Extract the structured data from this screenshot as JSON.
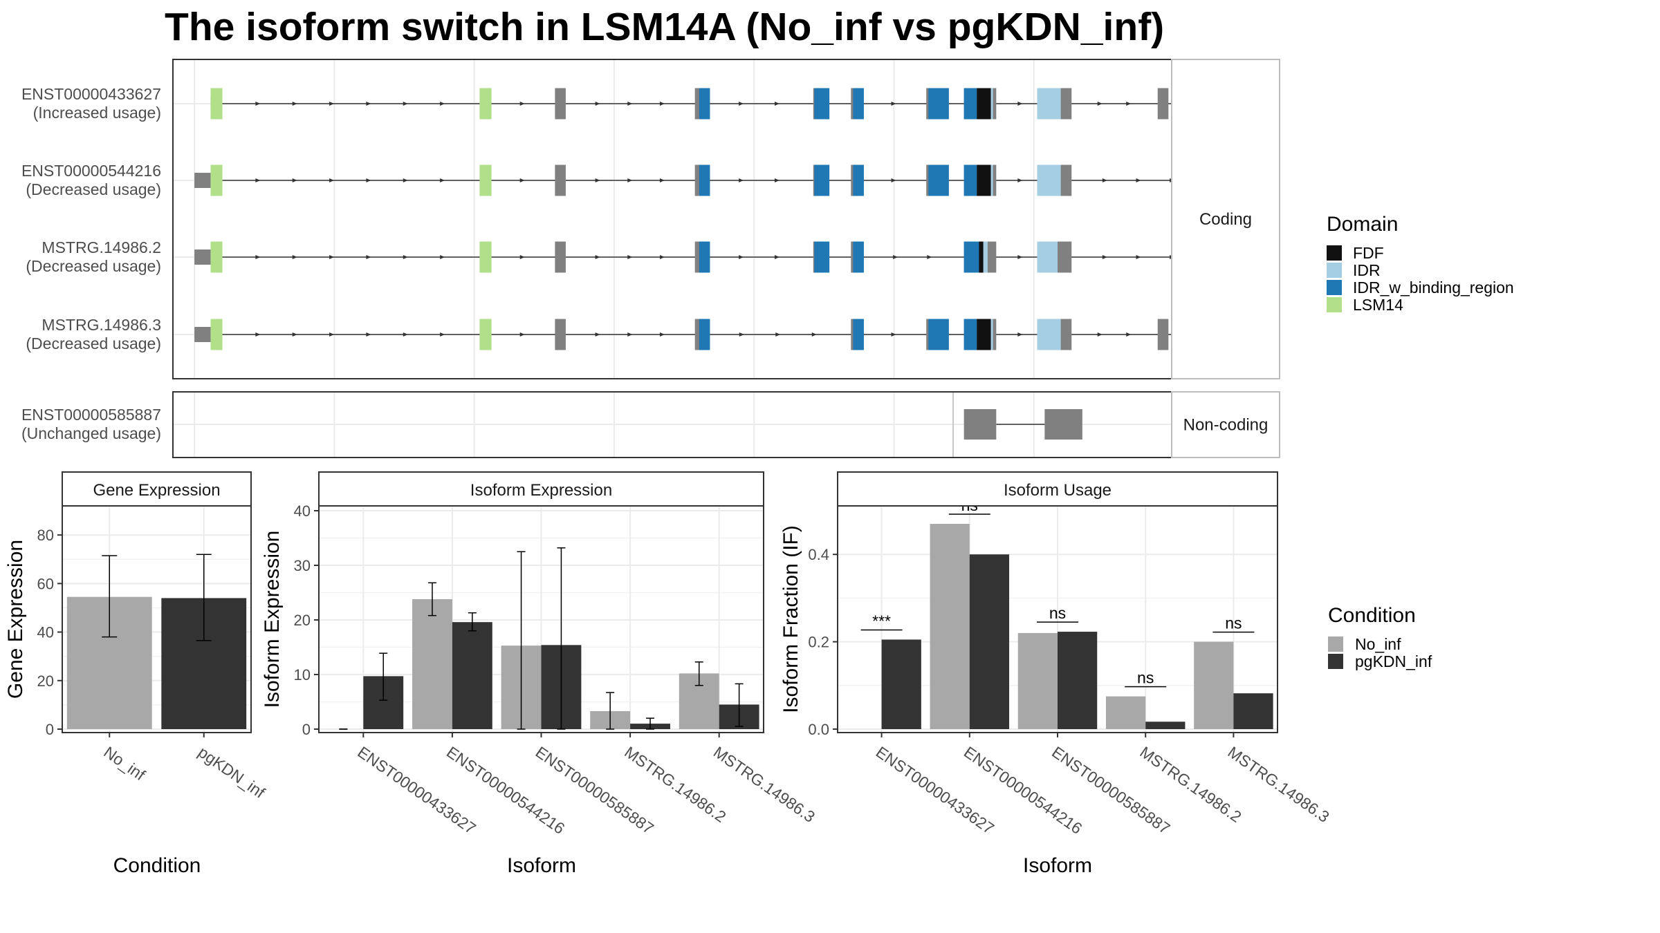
{
  "title": "The isoform switch in LSM14A (No_inf vs pgKDN_inf)",
  "colors": {
    "exon": "#808080",
    "FDF": "#111111",
    "IDR": "#A6CEE3",
    "IDR_w_binding_region": "#1F78B4",
    "LSM14": "#B2DF8A",
    "No_inf": "#A8A8A8",
    "pgKDN_inf": "#333333"
  },
  "structure": {
    "facets": [
      "Coding",
      "Non-coding"
    ],
    "domain_legend": {
      "title": "Domain",
      "items": [
        "FDF",
        "IDR",
        "IDR_w_binding_region",
        "LSM14"
      ]
    },
    "coding_isoforms": [
      {
        "id": "ENST00000433627",
        "usage": "(Increased usage)",
        "exons": [
          [
            85,
            95
          ],
          [
            335,
            345
          ],
          [
            405,
            415
          ],
          [
            535,
            545
          ],
          [
            645,
            655
          ],
          [
            680,
            690
          ],
          [
            750,
            770
          ],
          [
            785,
            815
          ],
          [
            860,
            885
          ],
          [
            965,
            975
          ],
          [
            1010,
            1060
          ]
        ],
        "domains": [
          [
            "LSM14",
            85,
            96
          ],
          [
            "LSM14",
            335,
            346
          ],
          [
            "IDR_w_binding_region",
            539,
            549
          ],
          [
            "IDR_w_binding_region",
            646,
            660
          ],
          [
            "IDR_w_binding_region",
            682,
            692
          ],
          [
            "IDR_w_binding_region",
            752,
            771
          ],
          [
            "IDR_w_binding_region",
            785,
            797
          ],
          [
            "FDF",
            797,
            810
          ],
          [
            "IDR",
            810,
            812
          ],
          [
            "IDR",
            853,
            875
          ]
        ]
      },
      {
        "id": "ENST00000544216",
        "usage": "(Decreased usage)",
        "exons": [
          [
            70,
            95
          ],
          [
            335,
            345
          ],
          [
            405,
            415
          ],
          [
            535,
            545
          ],
          [
            645,
            655
          ],
          [
            680,
            690
          ],
          [
            750,
            770
          ],
          [
            785,
            815
          ],
          [
            860,
            885
          ],
          [
            1010,
            1060
          ]
        ],
        "domains": [
          [
            "LSM14",
            85,
            96
          ],
          [
            "LSM14",
            335,
            346
          ],
          [
            "IDR_w_binding_region",
            539,
            549
          ],
          [
            "IDR_w_binding_region",
            646,
            660
          ],
          [
            "IDR_w_binding_region",
            682,
            692
          ],
          [
            "IDR_w_binding_region",
            752,
            771
          ],
          [
            "IDR_w_binding_region",
            785,
            797
          ],
          [
            "FDF",
            797,
            810
          ],
          [
            "IDR",
            810,
            812
          ],
          [
            "IDR",
            853,
            875
          ]
        ]
      },
      {
        "id": "MSTRG.14986.2",
        "usage": "(Decreased usage)",
        "exons": [
          [
            70,
            95
          ],
          [
            335,
            345
          ],
          [
            405,
            415
          ],
          [
            535,
            545
          ],
          [
            645,
            655
          ],
          [
            680,
            690
          ],
          [
            785,
            815
          ],
          [
            860,
            885
          ],
          [
            1010,
            1060
          ]
        ],
        "domains": [
          [
            "LSM14",
            85,
            96
          ],
          [
            "LSM14",
            335,
            346
          ],
          [
            "IDR_w_binding_region",
            539,
            549
          ],
          [
            "IDR_w_binding_region",
            646,
            660
          ],
          [
            "IDR_w_binding_region",
            682,
            692
          ],
          [
            "IDR_w_binding_region",
            785,
            799
          ],
          [
            "FDF",
            799,
            803
          ],
          [
            "IDR",
            803,
            807
          ],
          [
            "IDR",
            853,
            872
          ]
        ]
      },
      {
        "id": "MSTRG.14986.3",
        "usage": "(Decreased usage)",
        "exons": [
          [
            70,
            95
          ],
          [
            335,
            345
          ],
          [
            405,
            415
          ],
          [
            535,
            545
          ],
          [
            680,
            690
          ],
          [
            750,
            770
          ],
          [
            785,
            815
          ],
          [
            860,
            885
          ],
          [
            965,
            975
          ],
          [
            1010,
            1060
          ]
        ],
        "domains": [
          [
            "LSM14",
            85,
            96
          ],
          [
            "LSM14",
            335,
            346
          ],
          [
            "IDR_w_binding_region",
            539,
            549
          ],
          [
            "IDR_w_binding_region",
            682,
            692
          ],
          [
            "IDR_w_binding_region",
            752,
            771
          ],
          [
            "IDR_w_binding_region",
            785,
            797
          ],
          [
            "FDF",
            797,
            810
          ],
          [
            "IDR",
            810,
            812
          ],
          [
            "IDR",
            853,
            875
          ]
        ]
      }
    ],
    "noncoding_isoforms": [
      {
        "id": "ENST00000585887",
        "usage": "(Unchanged usage)",
        "exons": [
          [
            785,
            815
          ],
          [
            860,
            895
          ]
        ],
        "domains": []
      }
    ]
  },
  "chart_data": [
    {
      "type": "bar",
      "title": "Gene Expression",
      "xlabel": "Condition",
      "ylabel": "Gene Expression",
      "ylim": [
        0,
        90
      ],
      "yticks": [
        0,
        20,
        40,
        60,
        80
      ],
      "categories": [
        "No_inf",
        "pgKDN_inf"
      ],
      "values": [
        54.5,
        54
      ],
      "err_low": [
        38,
        36.5
      ],
      "err_high": [
        71.5,
        72
      ]
    },
    {
      "type": "bar",
      "title": "Isoform Expression",
      "xlabel": "Isoform",
      "ylabel": "Isoform Expression",
      "ylim": [
        0,
        40
      ],
      "yticks": [
        0,
        10,
        20,
        30,
        40
      ],
      "categories": [
        "ENST00000433627",
        "ENST00000544216",
        "ENST00000585887",
        "MSTRG.14986.2",
        "MSTRG.14986.3"
      ],
      "series": [
        {
          "name": "No_inf",
          "values": [
            0,
            23.8,
            15.3,
            3.3,
            10.2
          ],
          "err_low": [
            0,
            20.8,
            0,
            0,
            8
          ],
          "err_high": [
            0,
            26.8,
            32.5,
            6.7,
            12.3
          ]
        },
        {
          "name": "pgKDN_inf",
          "values": [
            9.7,
            19.6,
            15.4,
            1,
            4.5
          ],
          "err_low": [
            5.3,
            18,
            0,
            0,
            0.5
          ],
          "err_high": [
            13.9,
            21.3,
            33.2,
            2,
            8.3
          ]
        }
      ]
    },
    {
      "type": "bar",
      "title": "Isoform Usage",
      "xlabel": "Isoform",
      "ylabel": "Isoform Fraction (IF)",
      "ylim": [
        0,
        0.5
      ],
      "yticks": [
        0.0,
        0.2,
        0.4
      ],
      "categories": [
        "ENST00000433627",
        "ENST00000544216",
        "ENST00000585887",
        "MSTRG.14986.2",
        "MSTRG.14986.3"
      ],
      "series": [
        {
          "name": "No_inf",
          "values": [
            0,
            0.47,
            0.22,
            0.075,
            0.2
          ]
        },
        {
          "name": "pgKDN_inf",
          "values": [
            0.205,
            0.4,
            0.223,
            0.017,
            0.082
          ]
        }
      ],
      "significance": [
        "***",
        "ns",
        "ns",
        "ns",
        "ns"
      ]
    }
  ],
  "condition_legend": {
    "title": "Condition",
    "items": [
      "No_inf",
      "pgKDN_inf"
    ]
  }
}
